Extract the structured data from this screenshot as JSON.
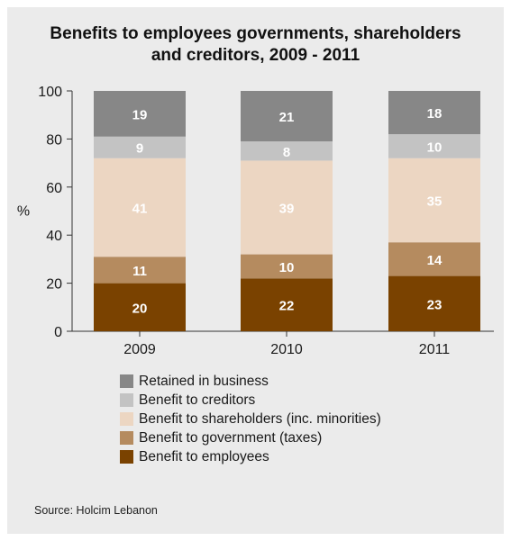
{
  "chart_data": {
    "type": "bar",
    "stacked": true,
    "title_line1": "Benefits to employees governments, shareholders",
    "title_line2": "and creditors, 2009 - 2011",
    "ylabel": "%",
    "ylim": [
      0,
      100
    ],
    "yticks": [
      0,
      20,
      40,
      60,
      80,
      100
    ],
    "categories": [
      "2009",
      "2010",
      "2011"
    ],
    "series": [
      {
        "name": "Benefit to employees",
        "values": [
          20,
          22,
          23
        ],
        "color": "#7a4200",
        "label_color": "#ffffff"
      },
      {
        "name": "Benefit to government (taxes)",
        "values": [
          11,
          10,
          14
        ],
        "color": "#b58b5f",
        "label_color": "#ffffff"
      },
      {
        "name": "Benefit to shareholders (inc. minorities)",
        "values": [
          41,
          39,
          35
        ],
        "color": "#ecd6c2",
        "label_color": "#ffffff"
      },
      {
        "name": "Benefit to creditors",
        "values": [
          9,
          8,
          10
        ],
        "color": "#c3c3c3",
        "label_color": "#ffffff"
      },
      {
        "name": "Retained in business",
        "values": [
          19,
          21,
          18
        ],
        "color": "#878787",
        "label_color": "#ffffff"
      }
    ],
    "legend_order": [
      4,
      3,
      2,
      1,
      0
    ],
    "legend_position": "bottom",
    "grid": false
  },
  "source": "Source: Holcim Lebanon"
}
